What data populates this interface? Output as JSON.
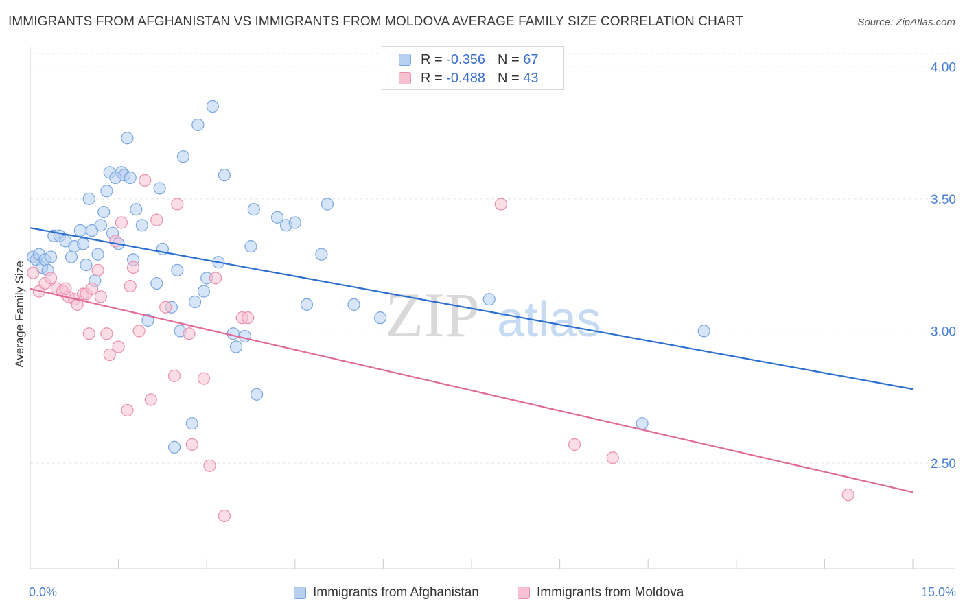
{
  "header": {
    "title": "IMMIGRANTS FROM AFGHANISTAN VS IMMIGRANTS FROM MOLDOVA AVERAGE FAMILY SIZE CORRELATION CHART",
    "source": "Source: ZipAtlas.com"
  },
  "watermark": {
    "zip": "ZIP",
    "atlas": "atlas"
  },
  "legend": {
    "r_label": "R =",
    "n_label": "N =",
    "afghanistan": {
      "r": "-0.356",
      "n": "67"
    },
    "moldova": {
      "r": "-0.488",
      "n": "43"
    }
  },
  "colors": {
    "afghanistan_fill": "#b7d0f2",
    "afghanistan_stroke": "#7aa6e0",
    "afghanistan_line": "#2b6fd1",
    "moldova_fill": "#f7c1d2",
    "moldova_stroke": "#ea8fae",
    "moldova_line": "#e06a98",
    "tick_text": "#4a7fd4",
    "grid": "#e3e3e3"
  },
  "chart_data": {
    "type": "scatter",
    "title": "IMMIGRANTS FROM AFGHANISTAN VS IMMIGRANTS FROM MOLDOVA AVERAGE FAMILY SIZE CORRELATION CHART",
    "xlabel": "",
    "ylabel": "Average Family Size",
    "x_unit": "percent",
    "xlim": [
      0,
      15
    ],
    "ylim": [
      2.1,
      4.05
    ],
    "x_tick_labels": [
      "0.0%",
      "15.0%"
    ],
    "y_ticks": [
      2.5,
      3.0,
      3.5,
      4.0
    ],
    "y_tick_labels": [
      "2.50",
      "3.00",
      "3.50",
      "4.00"
    ],
    "grid": true,
    "legend_position": "top-center",
    "series": [
      {
        "name": "Immigrants from Afghanistan",
        "r": -0.356,
        "n": 67,
        "trend": {
          "x": [
            0,
            15
          ],
          "y": [
            3.39,
            2.78
          ]
        },
        "points": [
          [
            0.05,
            3.28
          ],
          [
            0.1,
            3.27
          ],
          [
            0.15,
            3.29
          ],
          [
            0.2,
            3.24
          ],
          [
            0.25,
            3.27
          ],
          [
            0.35,
            3.28
          ],
          [
            0.4,
            3.36
          ],
          [
            0.5,
            3.36
          ],
          [
            0.6,
            3.34
          ],
          [
            0.7,
            3.28
          ],
          [
            0.75,
            3.32
          ],
          [
            0.85,
            3.38
          ],
          [
            0.9,
            3.33
          ],
          [
            0.95,
            3.25
          ],
          [
            1.0,
            3.5
          ],
          [
            1.05,
            3.38
          ],
          [
            1.1,
            3.19
          ],
          [
            1.15,
            3.29
          ],
          [
            1.2,
            3.4
          ],
          [
            1.25,
            3.45
          ],
          [
            1.3,
            3.53
          ],
          [
            1.35,
            3.6
          ],
          [
            1.4,
            3.37
          ],
          [
            1.5,
            3.33
          ],
          [
            1.55,
            3.6
          ],
          [
            1.6,
            3.59
          ],
          [
            1.65,
            3.73
          ],
          [
            1.7,
            3.58
          ],
          [
            1.75,
            3.27
          ],
          [
            1.8,
            3.46
          ],
          [
            1.9,
            3.4
          ],
          [
            2.0,
            3.04
          ],
          [
            2.15,
            3.18
          ],
          [
            2.2,
            3.54
          ],
          [
            2.25,
            3.31
          ],
          [
            2.4,
            3.09
          ],
          [
            2.45,
            2.56
          ],
          [
            2.5,
            3.23
          ],
          [
            2.55,
            3.0
          ],
          [
            2.6,
            3.66
          ],
          [
            2.75,
            2.65
          ],
          [
            2.8,
            3.11
          ],
          [
            2.85,
            3.78
          ],
          [
            2.95,
            3.15
          ],
          [
            3.0,
            3.2
          ],
          [
            3.1,
            3.85
          ],
          [
            3.2,
            3.26
          ],
          [
            3.3,
            3.59
          ],
          [
            3.45,
            2.99
          ],
          [
            3.5,
            2.94
          ],
          [
            3.65,
            2.98
          ],
          [
            3.75,
            3.32
          ],
          [
            3.8,
            3.46
          ],
          [
            3.85,
            2.76
          ],
          [
            4.2,
            3.43
          ],
          [
            4.35,
            3.4
          ],
          [
            4.5,
            3.41
          ],
          [
            4.7,
            3.1
          ],
          [
            4.95,
            3.29
          ],
          [
            5.05,
            3.48
          ],
          [
            5.5,
            3.1
          ],
          [
            5.95,
            3.05
          ],
          [
            7.8,
            3.12
          ],
          [
            10.4,
            2.65
          ],
          [
            11.45,
            3.0
          ],
          [
            0.3,
            3.23
          ],
          [
            1.45,
            3.58
          ]
        ]
      },
      {
        "name": "Immigrants from Moldova",
        "r": -0.488,
        "n": 43,
        "trend": {
          "x": [
            0,
            15
          ],
          "y": [
            3.16,
            2.39
          ]
        },
        "points": [
          [
            0.05,
            3.22
          ],
          [
            0.15,
            3.15
          ],
          [
            0.25,
            3.18
          ],
          [
            0.35,
            3.2
          ],
          [
            0.45,
            3.16
          ],
          [
            0.55,
            3.15
          ],
          [
            0.65,
            3.13
          ],
          [
            0.75,
            3.12
          ],
          [
            0.8,
            3.1
          ],
          [
            0.9,
            3.14
          ],
          [
            0.95,
            3.14
          ],
          [
            1.0,
            2.99
          ],
          [
            1.05,
            3.16
          ],
          [
            1.15,
            3.23
          ],
          [
            1.2,
            3.13
          ],
          [
            1.3,
            2.99
          ],
          [
            1.35,
            2.91
          ],
          [
            1.45,
            3.34
          ],
          [
            1.5,
            2.94
          ],
          [
            1.55,
            3.41
          ],
          [
            1.65,
            2.7
          ],
          [
            1.7,
            3.17
          ],
          [
            1.75,
            3.24
          ],
          [
            1.85,
            3.0
          ],
          [
            1.95,
            3.57
          ],
          [
            2.05,
            2.74
          ],
          [
            2.15,
            3.42
          ],
          [
            2.3,
            3.09
          ],
          [
            2.45,
            2.83
          ],
          [
            2.5,
            3.48
          ],
          [
            2.7,
            2.99
          ],
          [
            2.75,
            2.57
          ],
          [
            2.95,
            2.82
          ],
          [
            3.05,
            2.49
          ],
          [
            3.15,
            3.2
          ],
          [
            3.3,
            2.3
          ],
          [
            3.6,
            3.05
          ],
          [
            3.7,
            3.05
          ],
          [
            8.0,
            3.48
          ],
          [
            9.25,
            2.57
          ],
          [
            9.9,
            2.52
          ],
          [
            13.9,
            2.38
          ],
          [
            0.6,
            3.16
          ]
        ]
      }
    ]
  },
  "bottom_legend": {
    "afghanistan": "Immigrants from Afghanistan",
    "moldova": "Immigrants from Moldova"
  }
}
